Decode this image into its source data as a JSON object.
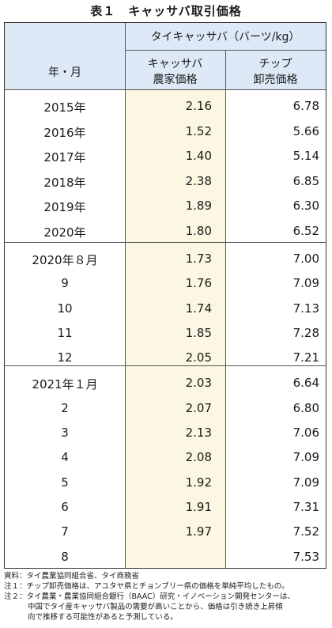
{
  "title": "表１　キャッサバ取引価格",
  "header": {
    "span_label": "タイキャッサバ（バーツ/kg）",
    "year_month": "年・月",
    "col1_line1": "キャッサバ",
    "col1_line2": "農家価格",
    "col2_line1": "チップ",
    "col2_line2": "卸売価格"
  },
  "rows": [
    {
      "label": "2015年",
      "farm": "2.16",
      "chip": "6.78"
    },
    {
      "label": "2016年",
      "farm": "1.52",
      "chip": "5.66"
    },
    {
      "label": "2017年",
      "farm": "1.40",
      "chip": "5.14"
    },
    {
      "label": "2018年",
      "farm": "2.38",
      "chip": "6.85"
    },
    {
      "label": "2019年",
      "farm": "1.89",
      "chip": "6.30"
    },
    {
      "label": "2020年",
      "farm": "1.80",
      "chip": "6.52"
    },
    {
      "label": "2020年８月",
      "farm": "1.73",
      "chip": "7.00"
    },
    {
      "label": "9",
      "farm": "1.76",
      "chip": "7.09"
    },
    {
      "label": "10",
      "farm": "1.74",
      "chip": "7.13"
    },
    {
      "label": "11",
      "farm": "1.85",
      "chip": "7.28"
    },
    {
      "label": "12",
      "farm": "2.05",
      "chip": "7.21"
    },
    {
      "label": "2021年１月",
      "farm": "2.03",
      "chip": "6.64"
    },
    {
      "label": "2",
      "farm": "2.07",
      "chip": "6.80"
    },
    {
      "label": "3",
      "farm": "2.13",
      "chip": "7.06"
    },
    {
      "label": "4",
      "farm": "2.08",
      "chip": "7.09"
    },
    {
      "label": "5",
      "farm": "1.92",
      "chip": "7.09"
    },
    {
      "label": "6",
      "farm": "1.91",
      "chip": "7.31"
    },
    {
      "label": "7",
      "farm": "1.97",
      "chip": "7.52"
    },
    {
      "label": "8",
      "farm": "",
      "chip": "7.53"
    }
  ],
  "notes": {
    "source": "資料：タイ農業協同組合省、タイ商務省",
    "note1": "注１：チップ卸売価格は、アユタヤ県とチョンブリー県の価格を単純平均したもの。",
    "note2_line1": "注２：タイ農業・農業協同組合銀行（BAAC）研究・イノベーション開発センターは、",
    "note2_line2": "中国でタイ産キャッサバ製品の需要が高いことから、価格は引き続き上昇傾",
    "note2_line3": "向で推移する可能性があると予測している。"
  }
}
